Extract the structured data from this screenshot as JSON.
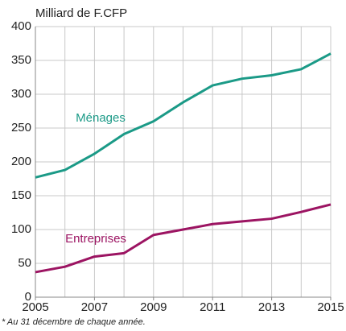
{
  "chart_data": {
    "type": "line",
    "y_label": "Milliard de F.CFP",
    "footnote": "* Au 31 décembre de chaque année.",
    "x": [
      2005,
      2006,
      2007,
      2008,
      2009,
      2010,
      2011,
      2012,
      2013,
      2014,
      2015
    ],
    "series": [
      {
        "name": "Ménages",
        "color": "#1b9a87",
        "values": [
          177,
          188,
          212,
          241,
          260,
          288,
          313,
          323,
          328,
          337,
          360
        ]
      },
      {
        "name": "Entreprises",
        "color": "#9c1462",
        "values": [
          37,
          45,
          60,
          65,
          92,
          100,
          108,
          112,
          116,
          126,
          137
        ]
      }
    ],
    "xlim": [
      2005,
      2015
    ],
    "xticks": [
      2005,
      2007,
      2009,
      2011,
      2013,
      2015
    ],
    "ylim": [
      0,
      400
    ],
    "yticks": [
      0,
      50,
      100,
      150,
      200,
      250,
      300,
      350,
      400
    ],
    "grid": true
  }
}
